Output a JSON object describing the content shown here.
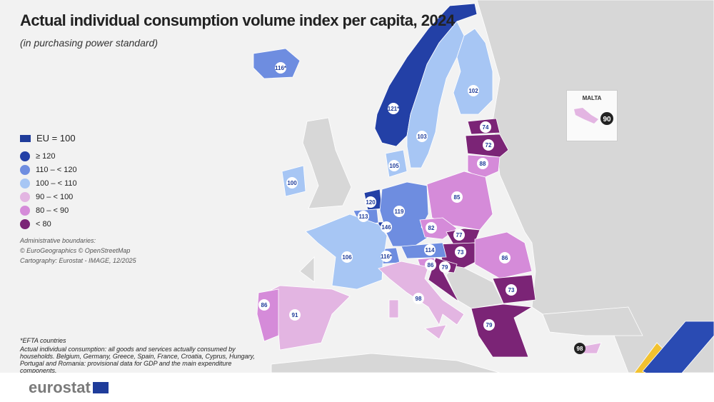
{
  "title": "Actual individual consumption volume index per capita, 2024",
  "subtitle": "(in purchasing power standard)",
  "legend": {
    "reference": "EU = 100",
    "classes": [
      {
        "label": "≥ 120",
        "color": "#2340a6"
      },
      {
        "label": "110 – < 120",
        "color": "#6e8de0"
      },
      {
        "label": "100 – < 110",
        "color": "#a7c6f4"
      },
      {
        "label": "90 – < 100",
        "color": "#e3b5e2"
      },
      {
        "label": "80 – < 90",
        "color": "#d58bd9"
      },
      {
        "label": "< 80",
        "color": "#7b2476"
      }
    ]
  },
  "credits": [
    "Administrative boundaries:",
    "© EuroGeographics © OpenStreetMap",
    "Cartography: Eurostat - IMAGE, 12/2025"
  ],
  "notes": [
    "*EFTA countries",
    "Actual individual consumption: all goods and services actually consumed by households. Belgium, Germany, Greece, Spain, France, Croatia, Cyprus, Hungary, Portugal and Romania: provisional data for GDP and the main expenditure components."
  ],
  "inset": {
    "title": "MALTA",
    "value": "90",
    "class": 3
  },
  "cyprus_value": "98",
  "regions": [
    {
      "value": "116*",
      "class": 1
    },
    {
      "value": "121*",
      "class": 0
    },
    {
      "value": "103",
      "class": 2
    },
    {
      "value": "102",
      "class": 2
    },
    {
      "value": "74",
      "class": 5
    },
    {
      "value": "72",
      "class": 5
    },
    {
      "value": "88",
      "class": 4
    },
    {
      "value": "105",
      "class": 2
    },
    {
      "value": "100",
      "class": 2
    },
    {
      "value": "120",
      "class": 0
    },
    {
      "value": "113",
      "class": 1
    },
    {
      "value": "146",
      "class": 0
    },
    {
      "value": "119",
      "class": 1
    },
    {
      "value": "85",
      "class": 4
    },
    {
      "value": "82",
      "class": 4
    },
    {
      "value": "77",
      "class": 5
    },
    {
      "value": "73",
      "class": 5
    },
    {
      "value": "86",
      "class": 4
    },
    {
      "value": "114",
      "class": 1
    },
    {
      "value": "116*",
      "class": 1
    },
    {
      "value": "86",
      "class": 4
    },
    {
      "value": "79",
      "class": 5
    },
    {
      "value": "106",
      "class": 2
    },
    {
      "value": "91",
      "class": 3
    },
    {
      "value": "86",
      "class": 4
    },
    {
      "value": "98",
      "class": 3
    },
    {
      "value": "73",
      "class": 5
    },
    {
      "value": "79",
      "class": 5
    }
  ],
  "colors": {
    "background": "#f2f2f2",
    "non_eu_land": "#d7d7d7",
    "label_text": "#1f3c9a"
  },
  "footer": {
    "logo_text": "eurostat"
  }
}
